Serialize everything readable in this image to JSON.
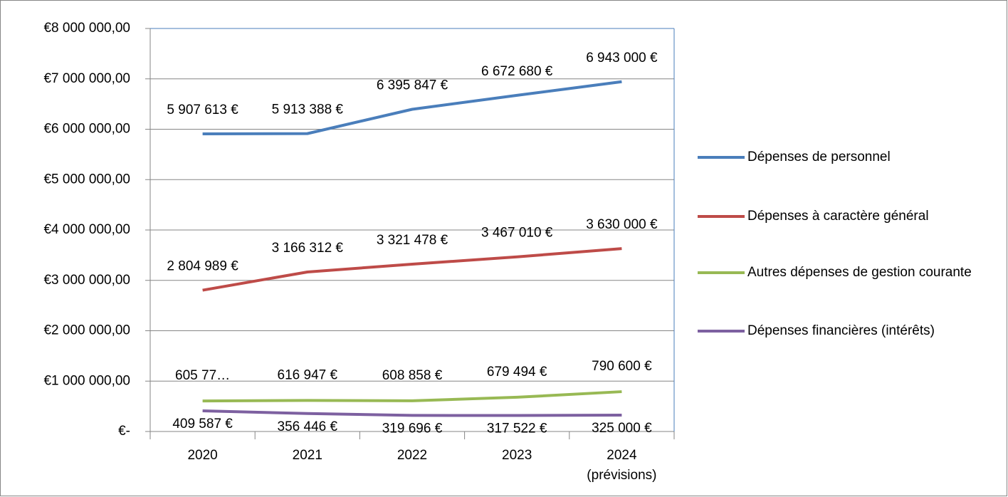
{
  "chart_data": {
    "type": "line",
    "categories": [
      "2020",
      "2021",
      "2022",
      "2023",
      "2024 (prévisions)"
    ],
    "ylim": [
      0,
      8000000
    ],
    "yticks": [
      {
        "value": 0,
        "label": "€-"
      },
      {
        "value": 1000000,
        "label": "€1 000 000,00"
      },
      {
        "value": 2000000,
        "label": "€2 000 000,00"
      },
      {
        "value": 3000000,
        "label": "€3 000 000,00"
      },
      {
        "value": 4000000,
        "label": "€4 000 000,00"
      },
      {
        "value": 5000000,
        "label": "€5 000 000,00"
      },
      {
        "value": 6000000,
        "label": "€6 000 000,00"
      },
      {
        "value": 7000000,
        "label": "€7 000 000,00"
      },
      {
        "value": 8000000,
        "label": "€8 000 000,00"
      }
    ],
    "grid": true,
    "legend": "right",
    "series": [
      {
        "name": "Dépenses de personnel",
        "color": "#4a7ebb",
        "values": [
          5907613,
          5913388,
          6395847,
          6672680,
          6943000
        ],
        "value_labels": [
          "5 907 613 €",
          "5 913 388 €",
          "6 395 847 €",
          "6 672 680 €",
          "6 943 000 €"
        ]
      },
      {
        "name": "Dépenses à caractère général",
        "color": "#be4b48",
        "values": [
          2804989,
          3166312,
          3321478,
          3467010,
          3630000
        ],
        "value_labels": [
          "2 804 989 €",
          "3 166 312 €",
          "3 321 478 €",
          "3 467 010 €",
          "3 630 000 €"
        ]
      },
      {
        "name": "Autres dépenses de gestion courante",
        "color": "#98b954",
        "values": [
          605770,
          616947,
          608858,
          679494,
          790600
        ],
        "value_labels": [
          "605 77…",
          "616 947 €",
          "608 858 €",
          "679 494 €",
          "790 600 €"
        ]
      },
      {
        "name": "Dépenses financières (intérêts)",
        "color": "#7d60a0",
        "values": [
          409587,
          356446,
          319696,
          317522,
          325000
        ],
        "value_labels": [
          "409 587 €",
          "356 446 €",
          "319 696 €",
          "317 522 €",
          "325 000 €"
        ]
      }
    ]
  }
}
